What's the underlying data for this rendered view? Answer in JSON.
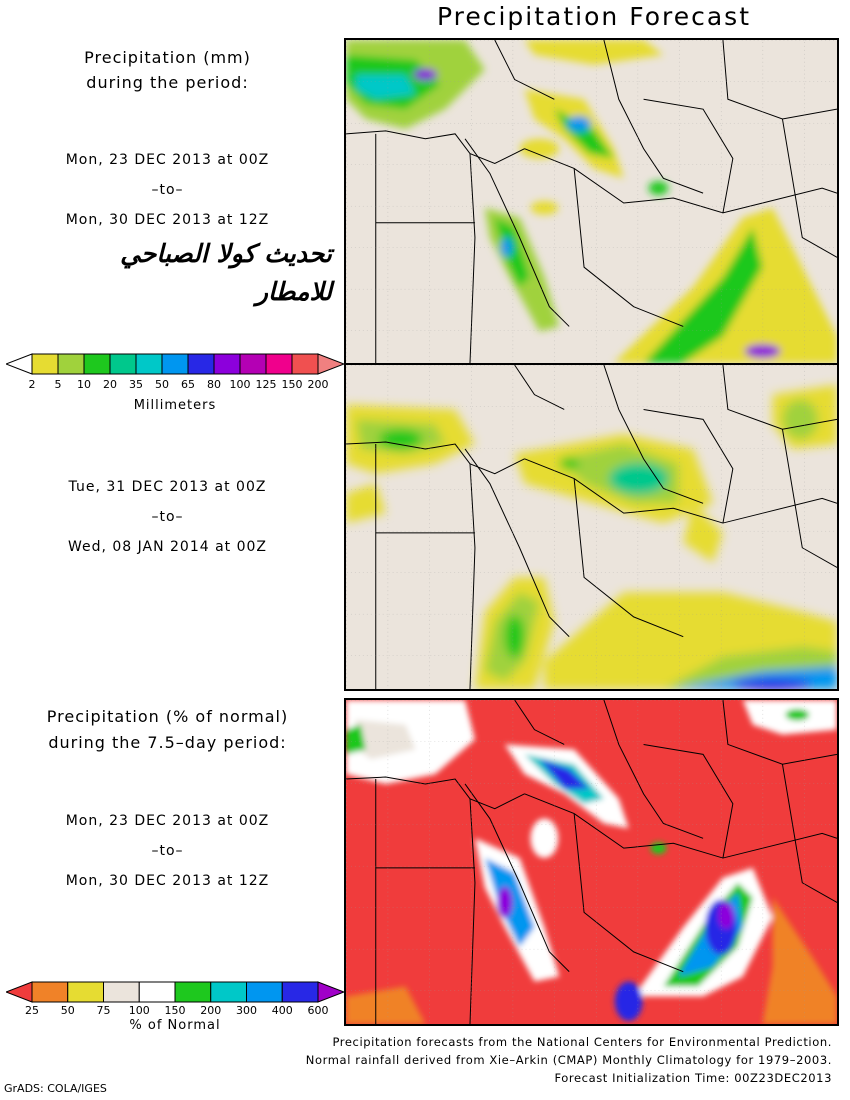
{
  "title": "Precipitation Forecast",
  "panel1": {
    "heading_line1": "Precipitation (mm)",
    "heading_line2": "during the period:",
    "start": "Mon, 23 DEC 2013 at 00Z",
    "to": "–to–",
    "end": "Mon, 30 DEC 2013 at 12Z"
  },
  "arabic_overlay": {
    "line1": "تحديث كولا الصباحي",
    "line2": "للامطار"
  },
  "panel2": {
    "start": "Tue, 31 DEC 2013 at 00Z",
    "to": "–to–",
    "end": "Wed, 08 JAN 2014 at 00Z"
  },
  "panel3": {
    "heading_line1": "Precipitation (% of normal)",
    "heading_line2": "during the 7.5–day period:",
    "start": "Mon, 23 DEC 2013 at 00Z",
    "to": "–to–",
    "end": "Mon, 30 DEC 2013 at 12Z"
  },
  "mm_colorbar": {
    "title": "Millimeters",
    "labels": [
      "2",
      "5",
      "10",
      "20",
      "35",
      "50",
      "65",
      "80",
      "100",
      "125",
      "150",
      "200"
    ],
    "colors": [
      "#ffffff",
      "#e6dc32",
      "#a0d23c",
      "#1ec81e",
      "#00c88c",
      "#00c8c8",
      "#0096f0",
      "#2828e6",
      "#8c00dc",
      "#b400b4",
      "#f0008c",
      "#f05050",
      "#f08080"
    ]
  },
  "pct_colorbar": {
    "title": "% of Normal",
    "labels": [
      "25",
      "50",
      "75",
      "100",
      "150",
      "200",
      "300",
      "400",
      "600"
    ],
    "colors": [
      "#f03c3c",
      "#f08228",
      "#e6dc32",
      "#ebe4dc",
      "#ffffff",
      "#1ec81e",
      "#00c8c8",
      "#0096f0",
      "#2828e6",
      "#a000c8"
    ]
  },
  "footer": {
    "line1": "Precipitation forecasts from the National Centers for Environmental Prediction.",
    "line2": "Normal rainfall derived from Xie–Arkin (CMAP) Monthly Climatology for 1979–2003.",
    "line3": "Forecast Initialization Time: 00Z23DEC2013"
  },
  "credit": "GrADS: COLA/IGES",
  "colors": {
    "land": "#ebe4dc",
    "pct_background": "#f03c3c"
  }
}
